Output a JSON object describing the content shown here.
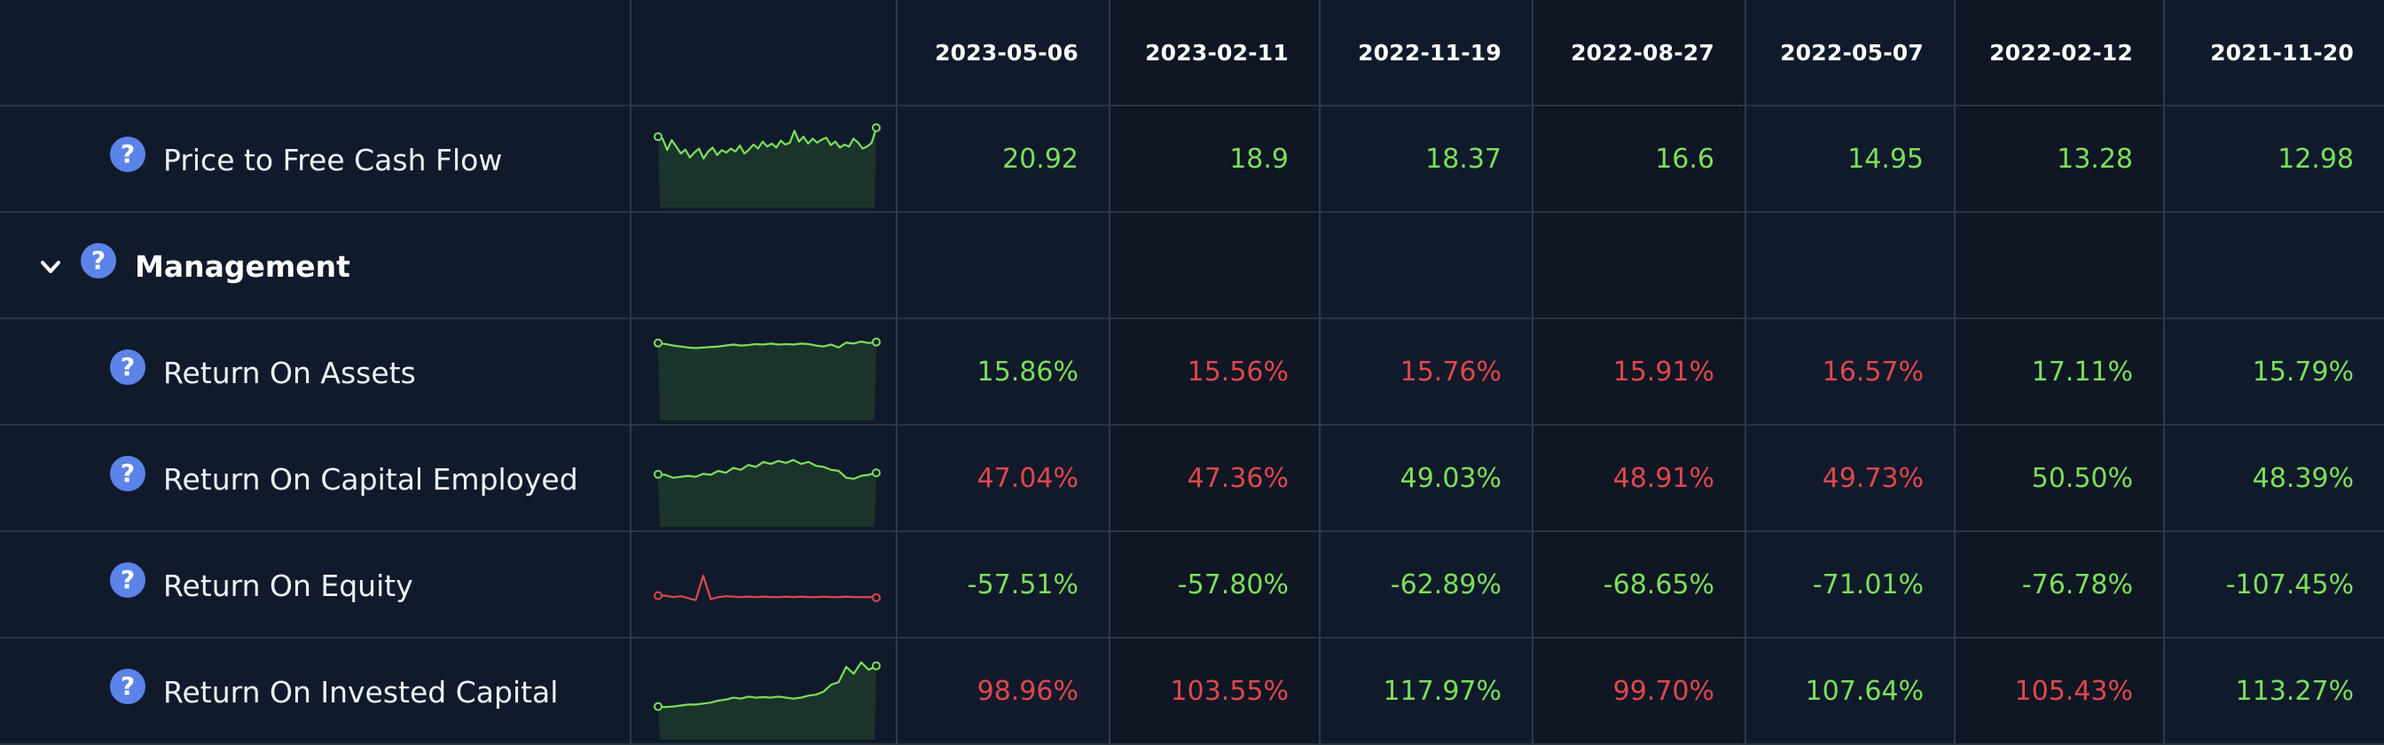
{
  "header": {
    "dates": [
      "2023-05-06",
      "2023-02-11",
      "2022-11-19",
      "2022-08-27",
      "2022-05-07",
      "2022-02-12",
      "2021-11-20"
    ]
  },
  "colors": {
    "positive": "#7be05a",
    "negative": "#e0474c",
    "help_icon": "#5b84e8"
  },
  "rows": [
    {
      "type": "metric",
      "label": "Price to Free Cash Flow",
      "sparkline_color": "green",
      "sparkline": [
        0.82,
        0.78,
        0.55,
        0.75,
        0.62,
        0.48,
        0.56,
        0.4,
        0.5,
        0.58,
        0.38,
        0.52,
        0.6,
        0.45,
        0.55,
        0.5,
        0.58,
        0.52,
        0.64,
        0.48,
        0.56,
        0.66,
        0.58,
        0.72,
        0.62,
        0.68,
        0.6,
        0.74,
        0.66,
        0.7,
        0.94,
        0.72,
        0.82,
        0.68,
        0.78,
        0.7,
        0.76,
        0.8,
        0.65,
        0.72,
        0.6,
        0.66,
        0.62,
        0.78,
        0.7,
        0.58,
        0.62,
        0.7,
        1.0
      ],
      "values": [
        {
          "text": "20.92",
          "tone": "pos"
        },
        {
          "text": "18.9",
          "tone": "pos"
        },
        {
          "text": "18.37",
          "tone": "pos"
        },
        {
          "text": "16.6",
          "tone": "pos"
        },
        {
          "text": "14.95",
          "tone": "pos"
        },
        {
          "text": "13.28",
          "tone": "pos"
        },
        {
          "text": "12.98",
          "tone": "pos"
        }
      ]
    },
    {
      "type": "section",
      "label": "Management",
      "chevron_icon": "chevron-down-icon"
    },
    {
      "type": "metric",
      "label": "Return On Assets",
      "sparkline_color": "green",
      "sparkline": [
        0.95,
        0.93,
        0.9,
        0.88,
        0.86,
        0.85,
        0.86,
        0.87,
        0.88,
        0.9,
        0.92,
        0.9,
        0.91,
        0.93,
        0.92,
        0.94,
        0.92,
        0.93,
        0.92,
        0.94,
        0.93,
        0.9,
        0.88,
        0.92,
        0.86,
        0.96,
        0.94,
        0.98,
        0.95,
        0.97
      ],
      "values": [
        {
          "text": "15.86%",
          "tone": "pos"
        },
        {
          "text": "15.56%",
          "tone": "neg"
        },
        {
          "text": "15.76%",
          "tone": "neg"
        },
        {
          "text": "15.91%",
          "tone": "neg"
        },
        {
          "text": "16.57%",
          "tone": "neg"
        },
        {
          "text": "17.11%",
          "tone": "pos"
        },
        {
          "text": "15.79%",
          "tone": "pos"
        }
      ]
    },
    {
      "type": "metric",
      "label": "Return On Capital Employed",
      "sparkline_color": "green",
      "sparkline": [
        0.45,
        0.44,
        0.38,
        0.4,
        0.42,
        0.4,
        0.46,
        0.44,
        0.52,
        0.48,
        0.58,
        0.54,
        0.64,
        0.6,
        0.7,
        0.66,
        0.72,
        0.68,
        0.74,
        0.66,
        0.7,
        0.62,
        0.6,
        0.54,
        0.52,
        0.38,
        0.36,
        0.42,
        0.44,
        0.48
      ],
      "values": [
        {
          "text": "47.04%",
          "tone": "neg"
        },
        {
          "text": "47.36%",
          "tone": "neg"
        },
        {
          "text": "49.03%",
          "tone": "pos"
        },
        {
          "text": "48.91%",
          "tone": "neg"
        },
        {
          "text": "49.73%",
          "tone": "neg"
        },
        {
          "text": "50.50%",
          "tone": "pos"
        },
        {
          "text": "48.39%",
          "tone": "pos"
        }
      ]
    },
    {
      "type": "metric",
      "label": "Return On Equity",
      "sparkline_color": "red",
      "sparkline": [
        0.15,
        0.15,
        0.12,
        0.14,
        0.1,
        0.06,
        0.55,
        0.08,
        0.12,
        0.14,
        0.13,
        0.12,
        0.13,
        0.12,
        0.13,
        0.12,
        0.12,
        0.13,
        0.12,
        0.13,
        0.12,
        0.12,
        0.13,
        0.12,
        0.12,
        0.13,
        0.12,
        0.12,
        0.12,
        0.11
      ],
      "values": [
        {
          "text": "-57.51%",
          "tone": "pos"
        },
        {
          "text": "-57.80%",
          "tone": "pos"
        },
        {
          "text": "-62.89%",
          "tone": "pos"
        },
        {
          "text": "-68.65%",
          "tone": "pos"
        },
        {
          "text": "-71.01%",
          "tone": "pos"
        },
        {
          "text": "-76.78%",
          "tone": "pos"
        },
        {
          "text": "-107.45%",
          "tone": "pos"
        }
      ]
    },
    {
      "type": "metric",
      "label": "Return On Invested Capital",
      "sparkline_color": "green",
      "sparkline": [
        0.06,
        0.05,
        0.06,
        0.08,
        0.1,
        0.1,
        0.12,
        0.14,
        0.18,
        0.2,
        0.24,
        0.22,
        0.26,
        0.24,
        0.25,
        0.24,
        0.26,
        0.24,
        0.22,
        0.24,
        0.28,
        0.3,
        0.36,
        0.5,
        0.55,
        0.86,
        0.72,
        0.95,
        0.8,
        0.88
      ],
      "values": [
        {
          "text": "98.96%",
          "tone": "neg"
        },
        {
          "text": "103.55%",
          "tone": "neg"
        },
        {
          "text": "117.97%",
          "tone": "pos"
        },
        {
          "text": "99.70%",
          "tone": "neg"
        },
        {
          "text": "107.64%",
          "tone": "pos"
        },
        {
          "text": "105.43%",
          "tone": "neg"
        },
        {
          "text": "113.27%",
          "tone": "pos"
        }
      ]
    }
  ]
}
